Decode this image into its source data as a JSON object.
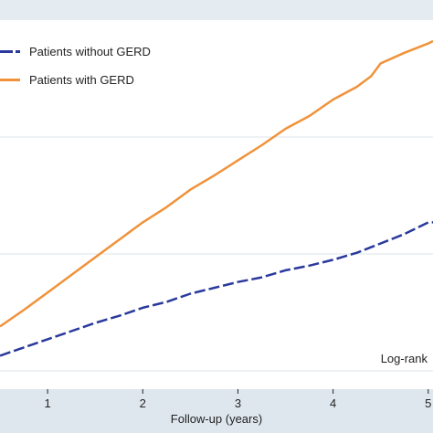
{
  "chart_data": {
    "type": "line",
    "title": "",
    "xlabel": "Follow-up (years)",
    "ylabel": "",
    "xlim": [
      0.5,
      5.05
    ],
    "ylim": [
      0,
      0.3
    ],
    "x_ticks": [
      1,
      2,
      3,
      4,
      5
    ],
    "x_tick_labels": [
      "1",
      "2",
      "3",
      "4",
      "5"
    ],
    "grid": true,
    "legend_position": "top-left",
    "annotation": "Log-rank",
    "series": [
      {
        "name": "Patients without GERD",
        "color": "#2a3a9c",
        "style": "dashed",
        "x": [
          0.5,
          0.75,
          1.0,
          1.25,
          1.5,
          1.75,
          2.0,
          2.25,
          2.5,
          2.75,
          3.0,
          3.25,
          3.5,
          3.75,
          4.0,
          4.25,
          4.5,
          4.75,
          5.0,
          5.05
        ],
        "y": [
          0.013,
          0.02,
          0.027,
          0.034,
          0.041,
          0.047,
          0.054,
          0.059,
          0.066,
          0.071,
          0.076,
          0.08,
          0.086,
          0.09,
          0.095,
          0.101,
          0.109,
          0.117,
          0.127,
          0.127
        ]
      },
      {
        "name": "Patients with GERD",
        "color": "#f0923a",
        "style": "solid",
        "x": [
          0.5,
          0.75,
          1.0,
          1.25,
          1.5,
          1.75,
          2.0,
          2.25,
          2.5,
          2.75,
          3.0,
          3.25,
          3.5,
          3.75,
          4.0,
          4.25,
          4.4,
          4.5,
          4.75,
          5.0,
          5.05
        ],
        "y": [
          0.038,
          0.052,
          0.067,
          0.082,
          0.097,
          0.112,
          0.127,
          0.14,
          0.155,
          0.167,
          0.18,
          0.193,
          0.207,
          0.218,
          0.232,
          0.243,
          0.252,
          0.263,
          0.272,
          0.28,
          0.282
        ]
      }
    ]
  }
}
